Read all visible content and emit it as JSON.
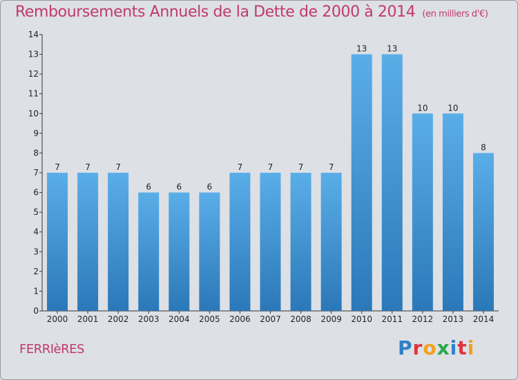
{
  "header": {
    "title": "Remboursements Annuels de la Dette de 2000 à 2014",
    "unit": "(en milliers d'€)"
  },
  "footer": {
    "commune": "FERRIèRES",
    "logo": {
      "text": "Proxiti",
      "letters": [
        {
          "ch": "P",
          "color": "#2f7fc8"
        },
        {
          "ch": "r",
          "color": "#e0343b"
        },
        {
          "ch": "o",
          "color": "#f2a11f"
        },
        {
          "ch": "x",
          "color": "#2aa84a"
        },
        {
          "ch": "i",
          "color": "#2f7fc8"
        },
        {
          "ch": "t",
          "color": "#e0343b"
        },
        {
          "ch": "i",
          "color": "#f2a11f"
        }
      ]
    }
  },
  "chart_data": {
    "type": "bar",
    "title": "Remboursements Annuels de la Dette de 2000 à 2014",
    "xlabel": "",
    "ylabel": "",
    "ylim": [
      0,
      14
    ],
    "yticks": [
      0,
      1,
      2,
      3,
      4,
      5,
      6,
      7,
      8,
      9,
      10,
      11,
      12,
      13,
      14
    ],
    "grid": false,
    "categories": [
      "2000",
      "2001",
      "2002",
      "2003",
      "2004",
      "2005",
      "2006",
      "2007",
      "2008",
      "2009",
      "2010",
      "2011",
      "2012",
      "2013",
      "2014"
    ],
    "values": [
      7,
      7,
      7,
      6,
      6,
      6,
      7,
      7,
      7,
      7,
      13,
      13,
      10,
      10,
      8
    ],
    "bar_color_top": "#5aaee8",
    "bar_color_bottom": "#2b78b8"
  }
}
